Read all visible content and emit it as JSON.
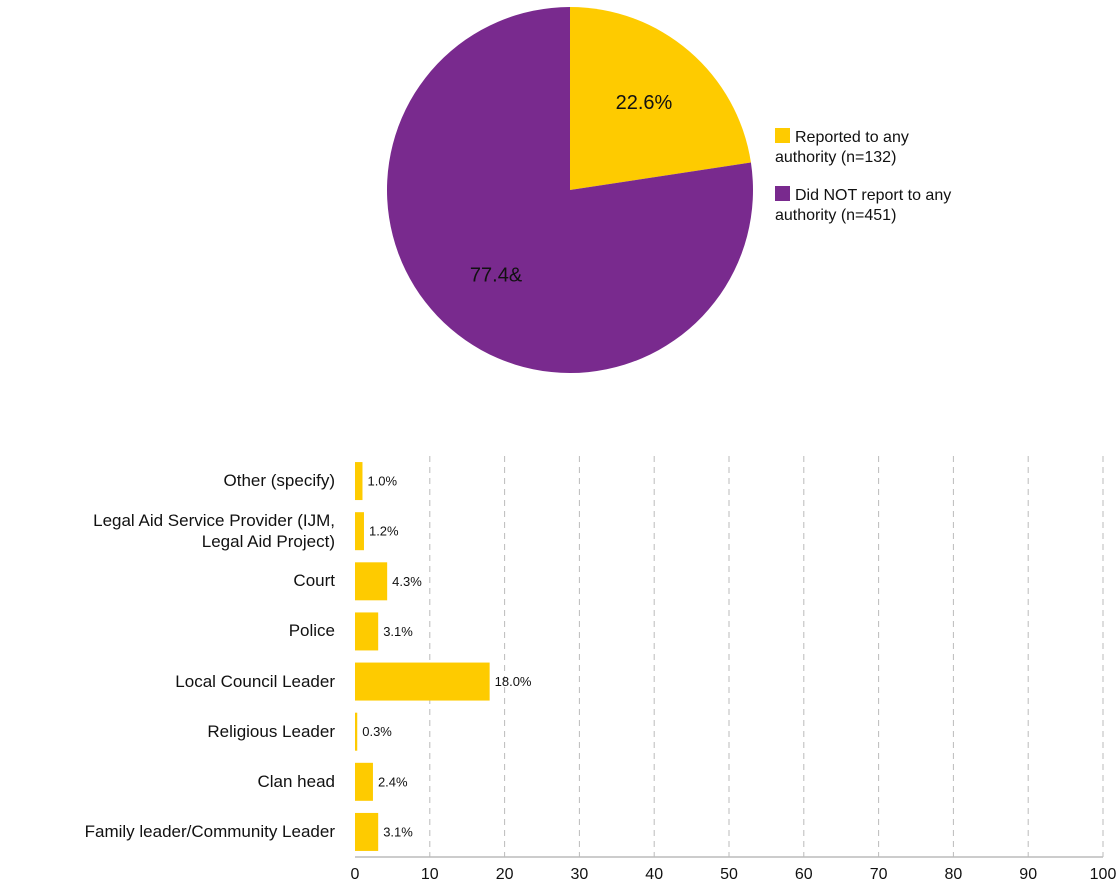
{
  "chart_data": [
    {
      "type": "pie",
      "categories": [
        "Reported to any authority (n=132)",
        "Did NOT report to any authority (n=451)"
      ],
      "values": [
        22.6,
        77.4
      ],
      "value_labels": [
        "22.6%",
        "77.4&"
      ],
      "colors": [
        "#fecb00",
        "#792a8e"
      ],
      "legend": "right"
    },
    {
      "type": "hbar",
      "categories": [
        "Other (specify)",
        "Legal Aid Service Provider (IJM, Legal Aid Project)",
        "Court",
        "Police",
        "Local Council Leader",
        "Religious Leader",
        "Clan head",
        "Family leader/Community Leader"
      ],
      "values": [
        1.0,
        1.2,
        4.3,
        3.1,
        18.0,
        0.3,
        2.4,
        3.1
      ],
      "value_labels": [
        "1.0%",
        "1.2%",
        "4.3%",
        "3.1%",
        "18.0%",
        "0.3%",
        "2.4%",
        "3.1%"
      ],
      "color": "#fecb00",
      "xlim": [
        0,
        100
      ],
      "xticks": [
        0,
        10,
        20,
        30,
        40,
        50,
        60,
        70,
        80,
        90,
        100
      ],
      "grid": true
    }
  ]
}
